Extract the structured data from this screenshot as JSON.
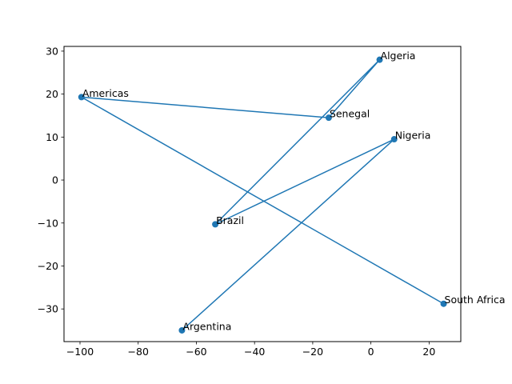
{
  "chart_data": {
    "type": "line",
    "title": "",
    "xlabel": "",
    "ylabel": "",
    "xlim": [
      -105.5,
      30.9
    ],
    "ylim": [
      -37.6,
      31.1
    ],
    "xticks": [
      -100,
      -80,
      -60,
      -40,
      -20,
      0,
      20
    ],
    "yticks": [
      -30,
      -20,
      -10,
      0,
      10,
      20,
      30
    ],
    "xtick_labels": [
      "−100",
      "−80",
      "−60",
      "−40",
      "−20",
      "0",
      "20"
    ],
    "ytick_labels": [
      "−30",
      "−20",
      "−10",
      "0",
      "10",
      "20",
      "30"
    ],
    "grid": false,
    "legend": "none",
    "colors": {
      "series": "#1f77b4",
      "axis": "#000000",
      "background": "#ffffff"
    },
    "series": [
      {
        "points": [
          {
            "label": "Argentina",
            "x": -64.96,
            "y": -34.99
          },
          {
            "label": "Nigeria",
            "x": 8.0,
            "y": 9.5
          },
          {
            "label": "Brazil",
            "x": -53.5,
            "y": -10.3
          },
          {
            "label": "Algeria",
            "x": 3.0,
            "y": 28.0
          },
          {
            "label": "Senegal",
            "x": -14.5,
            "y": 14.5
          },
          {
            "label": "Americas",
            "x": -99.5,
            "y": 19.3
          },
          {
            "label": "South Africa",
            "x": 25.0,
            "y": -28.8
          }
        ]
      }
    ]
  }
}
